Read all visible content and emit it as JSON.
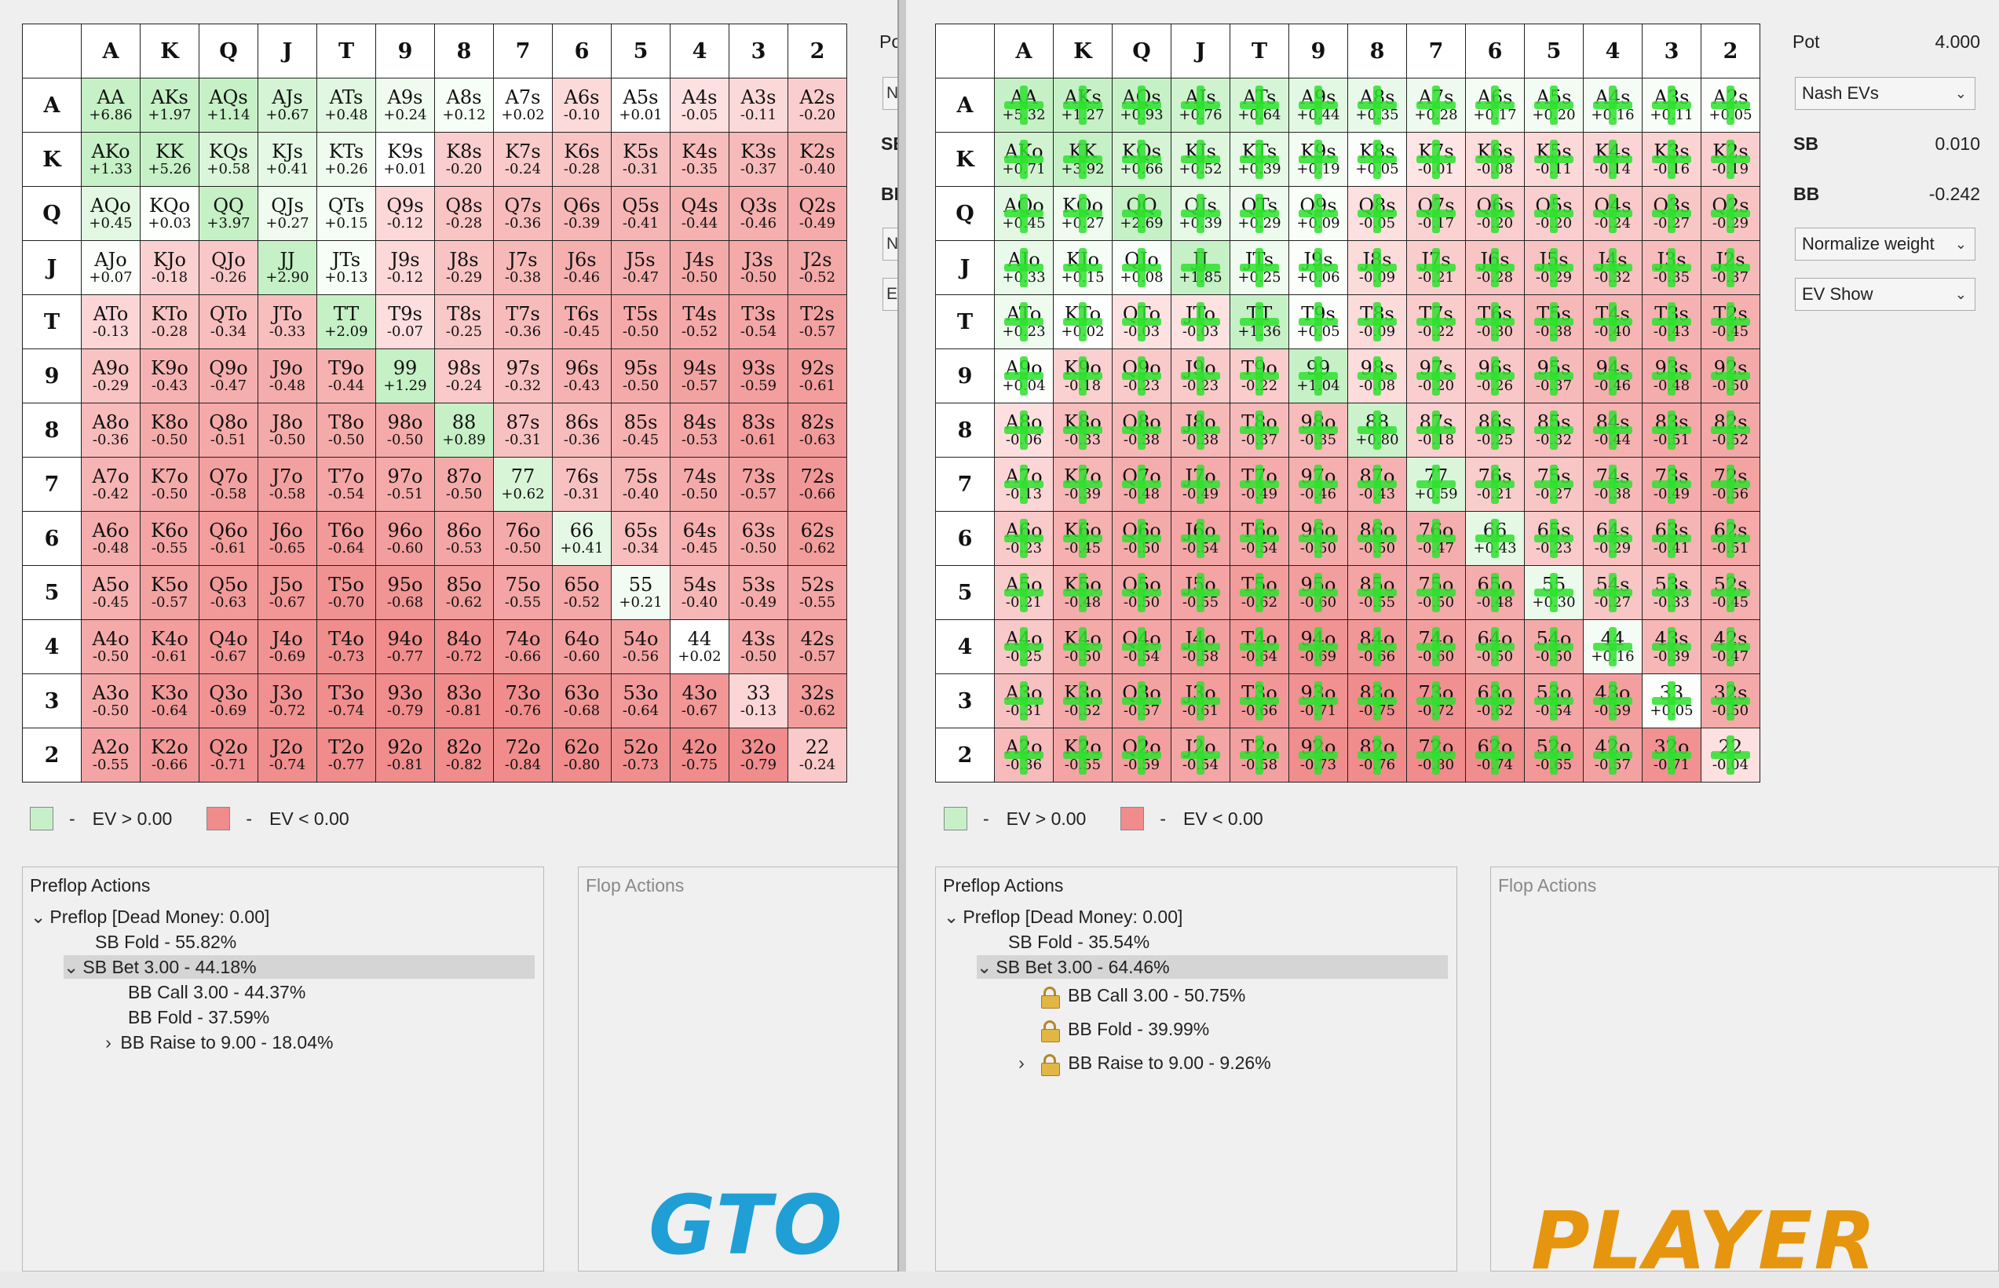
{
  "colors": {
    "positive": "#c8f0c8",
    "negative": "#f08c8c",
    "cross": "#2ee02e",
    "gto_brand": "#1f9fd6",
    "player_brand": "#e6960e"
  },
  "ranks": [
    "A",
    "K",
    "Q",
    "J",
    "T",
    "9",
    "8",
    "7",
    "6",
    "5",
    "4",
    "3",
    "2"
  ],
  "left": {
    "evs": [
      [
        "+6.86",
        "+1.97",
        "+1.14",
        "+0.67",
        "+0.48",
        "+0.24",
        "+0.12",
        "+0.02",
        "-0.10",
        "+0.01",
        "-0.05",
        "-0.11",
        "-0.20"
      ],
      [
        "+1.33",
        "+5.26",
        "+0.58",
        "+0.41",
        "+0.26",
        "+0.01",
        "-0.20",
        "-0.24",
        "-0.28",
        "-0.31",
        "-0.35",
        "-0.37",
        "-0.40"
      ],
      [
        "+0.45",
        "+0.03",
        "+3.97",
        "+0.27",
        "+0.15",
        "-0.12",
        "-0.28",
        "-0.36",
        "-0.39",
        "-0.41",
        "-0.44",
        "-0.46",
        "-0.49"
      ],
      [
        "+0.07",
        "-0.18",
        "-0.26",
        "+2.90",
        "+0.13",
        "-0.12",
        "-0.29",
        "-0.38",
        "-0.46",
        "-0.47",
        "-0.50",
        "-0.50",
        "-0.52"
      ],
      [
        "-0.13",
        "-0.28",
        "-0.34",
        "-0.33",
        "+2.09",
        "-0.07",
        "-0.25",
        "-0.36",
        "-0.45",
        "-0.50",
        "-0.52",
        "-0.54",
        "-0.57"
      ],
      [
        "-0.29",
        "-0.43",
        "-0.47",
        "-0.48",
        "-0.44",
        "+1.29",
        "-0.24",
        "-0.32",
        "-0.43",
        "-0.50",
        "-0.57",
        "-0.59",
        "-0.61"
      ],
      [
        "-0.36",
        "-0.50",
        "-0.51",
        "-0.50",
        "-0.50",
        "-0.50",
        "+0.89",
        "-0.31",
        "-0.36",
        "-0.45",
        "-0.53",
        "-0.61",
        "-0.63"
      ],
      [
        "-0.42",
        "-0.50",
        "-0.58",
        "-0.58",
        "-0.54",
        "-0.51",
        "-0.50",
        "+0.62",
        "-0.31",
        "-0.40",
        "-0.50",
        "-0.57",
        "-0.66"
      ],
      [
        "-0.48",
        "-0.55",
        "-0.61",
        "-0.65",
        "-0.64",
        "-0.60",
        "-0.53",
        "-0.50",
        "+0.41",
        "-0.34",
        "-0.45",
        "-0.50",
        "-0.62"
      ],
      [
        "-0.45",
        "-0.57",
        "-0.63",
        "-0.67",
        "-0.70",
        "-0.68",
        "-0.62",
        "-0.55",
        "-0.52",
        "+0.21",
        "-0.40",
        "-0.49",
        "-0.55"
      ],
      [
        "-0.50",
        "-0.61",
        "-0.67",
        "-0.69",
        "-0.73",
        "-0.77",
        "-0.72",
        "-0.66",
        "-0.60",
        "-0.56",
        "+0.02",
        "-0.50",
        "-0.57"
      ],
      [
        "-0.50",
        "-0.64",
        "-0.69",
        "-0.72",
        "-0.74",
        "-0.79",
        "-0.81",
        "-0.76",
        "-0.68",
        "-0.64",
        "-0.67",
        "-0.13",
        "-0.62"
      ],
      [
        "-0.55",
        "-0.66",
        "-0.71",
        "-0.74",
        "-0.77",
        "-0.81",
        "-0.82",
        "-0.84",
        "-0.80",
        "-0.73",
        "-0.75",
        "-0.79",
        "-0.24"
      ]
    ],
    "legend": {
      "dash": "-",
      "positive": "EV > 0.00",
      "negative": "EV < 0.00"
    },
    "preflop_title": "Preflop Actions",
    "flop_title": "Flop Actions",
    "tree": {
      "root": "Preflop [Dead Money: 0.00]",
      "sb_fold": "SB Fold - 55.82%",
      "sb_bet": "SB Bet 3.00 - 44.18%",
      "bb_call": "BB Call 3.00 - 44.37%",
      "bb_fold": "BB Fold - 37.59%",
      "bb_raise": "BB Raise to 9.00 - 18.04%"
    },
    "brand": "GTO",
    "clipped": {
      "pot": "Po",
      "btn1": "N",
      "sb": "SE",
      "bb": "BE",
      "btn2": "N",
      "btn3": "E\\"
    }
  },
  "right": {
    "evs": [
      [
        "+5.32",
        "+1.27",
        "+0.93",
        "+0.76",
        "+0.64",
        "+0.44",
        "+0.35",
        "+0.28",
        "+0.17",
        "+0.20",
        "+0.16",
        "+0.11",
        "+0.05"
      ],
      [
        "+0.71",
        "+3.92",
        "+0.66",
        "+0.52",
        "+0.39",
        "+0.19",
        "+0.05",
        "-0.01",
        "-0.08",
        "-0.11",
        "-0.14",
        "-0.16",
        "-0.19"
      ],
      [
        "+0.45",
        "+0.27",
        "+2.69",
        "+0.39",
        "+0.29",
        "+0.09",
        "-0.05",
        "-0.17",
        "-0.20",
        "-0.20",
        "-0.24",
        "-0.27",
        "-0.29"
      ],
      [
        "+0.33",
        "+0.15",
        "+0.08",
        "+1.85",
        "+0.25",
        "+0.06",
        "-0.09",
        "-0.21",
        "-0.28",
        "-0.29",
        "-0.32",
        "-0.35",
        "-0.37"
      ],
      [
        "+0.23",
        "+0.02",
        "-0.03",
        "-0.03",
        "+1.36",
        "+0.05",
        "-0.09",
        "-0.22",
        "-0.30",
        "-0.38",
        "-0.40",
        "-0.43",
        "-0.45"
      ],
      [
        "+0.04",
        "-0.18",
        "-0.23",
        "-0.23",
        "-0.22",
        "+1.04",
        "-0.08",
        "-0.20",
        "-0.26",
        "-0.37",
        "-0.46",
        "-0.48",
        "-0.50"
      ],
      [
        "-0.06",
        "-0.33",
        "-0.38",
        "-0.38",
        "-0.37",
        "-0.35",
        "+0.80",
        "-0.18",
        "-0.25",
        "-0.32",
        "-0.44",
        "-0.51",
        "-0.52"
      ],
      [
        "-0.13",
        "-0.39",
        "-0.48",
        "-0.49",
        "-0.49",
        "-0.46",
        "-0.43",
        "+0.59",
        "-0.21",
        "-0.27",
        "-0.38",
        "-0.49",
        "-0.56"
      ],
      [
        "-0.23",
        "-0.45",
        "-0.50",
        "-0.54",
        "-0.54",
        "-0.50",
        "-0.50",
        "-0.47",
        "+0.43",
        "-0.23",
        "-0.29",
        "-0.41",
        "-0.51"
      ],
      [
        "-0.21",
        "-0.48",
        "-0.50",
        "-0.55",
        "-0.62",
        "-0.60",
        "-0.55",
        "-0.50",
        "-0.48",
        "+0.30",
        "-0.27",
        "-0.33",
        "-0.45"
      ],
      [
        "-0.25",
        "-0.50",
        "-0.54",
        "-0.58",
        "-0.64",
        "-0.69",
        "-0.66",
        "-0.60",
        "-0.50",
        "-0.50",
        "+0.16",
        "-0.39",
        "-0.47"
      ],
      [
        "-0.31",
        "-0.52",
        "-0.57",
        "-0.61",
        "-0.66",
        "-0.71",
        "-0.75",
        "-0.72",
        "-0.62",
        "-0.54",
        "-0.59",
        "+0.05",
        "-0.50"
      ],
      [
        "-0.36",
        "-0.55",
        "-0.59",
        "-0.54",
        "-0.58",
        "-0.73",
        "-0.76",
        "-0.80",
        "-0.74",
        "-0.65",
        "-0.57",
        "-0.71",
        "-0.04"
      ]
    ],
    "legend": {
      "dash": "-",
      "positive": "EV > 0.00",
      "negative": "EV < 0.00"
    },
    "preflop_title": "Preflop Actions",
    "flop_title": "Flop Actions",
    "tree": {
      "root": "Preflop [Dead Money: 0.00]",
      "sb_fold": "SB Fold - 35.54%",
      "sb_bet": "SB Bet 3.00 - 64.46%",
      "bb_call": "BB Call 3.00 - 50.75%",
      "bb_fold": "BB Fold - 39.99%",
      "bb_raise": "BB Raise to 9.00 - 9.26%"
    },
    "brand": "PLAYER",
    "side": {
      "pot_label": "Pot",
      "pot_value": "4.000",
      "mode": "Nash EVs",
      "sb_label": "SB",
      "sb_value": "0.010",
      "bb_label": "BB",
      "bb_value": "-0.242",
      "weight": "Normalize weight",
      "show": "EV Show"
    }
  }
}
